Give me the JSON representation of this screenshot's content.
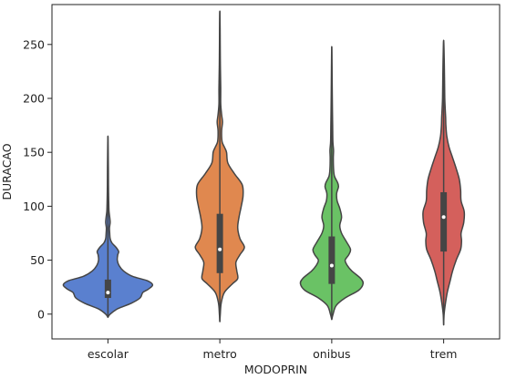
{
  "chart_data": {
    "type": "violin",
    "xlabel": "MODOPRIN",
    "ylabel": "DURACAO",
    "ylim": [
      -23,
      287
    ],
    "yticks": [
      0,
      50,
      100,
      150,
      200,
      250
    ],
    "grid": false,
    "categories": [
      "escolar",
      "metro",
      "onibus",
      "trem"
    ],
    "series": [
      {
        "category": "escolar",
        "color": "#5a80cf",
        "summary": {
          "min": -3,
          "q1": 15,
          "median": 20,
          "q3": 32,
          "max": 165
        },
        "density": [
          [
            -3,
            0.0
          ],
          [
            0,
            0.05
          ],
          [
            5,
            0.22
          ],
          [
            10,
            0.52
          ],
          [
            15,
            0.72
          ],
          [
            20,
            0.78
          ],
          [
            23,
            0.9
          ],
          [
            27,
            1.0
          ],
          [
            31,
            0.88
          ],
          [
            35,
            0.55
          ],
          [
            40,
            0.35
          ],
          [
            45,
            0.25
          ],
          [
            50,
            0.21
          ],
          [
            55,
            0.22
          ],
          [
            58,
            0.24
          ],
          [
            62,
            0.18
          ],
          [
            66,
            0.09
          ],
          [
            70,
            0.05
          ],
          [
            75,
            0.04
          ],
          [
            80,
            0.035
          ],
          [
            85,
            0.05
          ],
          [
            90,
            0.04
          ],
          [
            95,
            0.025
          ],
          [
            100,
            0.02
          ],
          [
            110,
            0.015
          ],
          [
            120,
            0.012
          ],
          [
            135,
            0.01
          ],
          [
            150,
            0.006
          ],
          [
            165,
            0.0
          ]
        ]
      },
      {
        "category": "metro",
        "color": "#e0884f",
        "summary": {
          "min": -7,
          "q1": 38,
          "median": 60,
          "q3": 93,
          "max": 281
        },
        "density": [
          [
            -7,
            0.0
          ],
          [
            0,
            0.01
          ],
          [
            10,
            0.03
          ],
          [
            20,
            0.1
          ],
          [
            28,
            0.28
          ],
          [
            33,
            0.4
          ],
          [
            40,
            0.38
          ],
          [
            48,
            0.36
          ],
          [
            55,
            0.45
          ],
          [
            62,
            0.55
          ],
          [
            70,
            0.45
          ],
          [
            80,
            0.4
          ],
          [
            90,
            0.43
          ],
          [
            100,
            0.48
          ],
          [
            110,
            0.52
          ],
          [
            120,
            0.5
          ],
          [
            130,
            0.33
          ],
          [
            140,
            0.18
          ],
          [
            150,
            0.15
          ],
          [
            155,
            0.1
          ],
          [
            160,
            0.05
          ],
          [
            170,
            0.04
          ],
          [
            178,
            0.06
          ],
          [
            185,
            0.04
          ],
          [
            195,
            0.02
          ],
          [
            210,
            0.02
          ],
          [
            230,
            0.012
          ],
          [
            250,
            0.008
          ],
          [
            265,
            0.006
          ],
          [
            281,
            0.0
          ]
        ]
      },
      {
        "category": "onibus",
        "color": "#6ac265",
        "summary": {
          "min": -5,
          "q1": 28,
          "median": 45,
          "q3": 72,
          "max": 248
        },
        "density": [
          [
            -5,
            0.0
          ],
          [
            0,
            0.03
          ],
          [
            8,
            0.1
          ],
          [
            15,
            0.3
          ],
          [
            22,
            0.6
          ],
          [
            28,
            0.7
          ],
          [
            33,
            0.65
          ],
          [
            40,
            0.45
          ],
          [
            45,
            0.35
          ],
          [
            50,
            0.3
          ],
          [
            55,
            0.38
          ],
          [
            60,
            0.42
          ],
          [
            67,
            0.33
          ],
          [
            75,
            0.22
          ],
          [
            82,
            0.18
          ],
          [
            90,
            0.22
          ],
          [
            98,
            0.18
          ],
          [
            105,
            0.12
          ],
          [
            112,
            0.11
          ],
          [
            118,
            0.15
          ],
          [
            122,
            0.13
          ],
          [
            128,
            0.06
          ],
          [
            135,
            0.04
          ],
          [
            145,
            0.035
          ],
          [
            152,
            0.04
          ],
          [
            160,
            0.025
          ],
          [
            175,
            0.02
          ],
          [
            190,
            0.015
          ],
          [
            210,
            0.01
          ],
          [
            230,
            0.006
          ],
          [
            248,
            0.0
          ]
        ]
      },
      {
        "category": "trem",
        "color": "#d4605c",
        "summary": {
          "min": -10,
          "q1": 58,
          "median": 90,
          "q3": 113,
          "max": 254
        },
        "density": [
          [
            -10,
            0.0
          ],
          [
            0,
            0.01
          ],
          [
            10,
            0.04
          ],
          [
            20,
            0.08
          ],
          [
            30,
            0.14
          ],
          [
            40,
            0.2
          ],
          [
            50,
            0.28
          ],
          [
            60,
            0.38
          ],
          [
            68,
            0.4
          ],
          [
            75,
            0.39
          ],
          [
            85,
            0.45
          ],
          [
            95,
            0.46
          ],
          [
            105,
            0.39
          ],
          [
            115,
            0.38
          ],
          [
            125,
            0.35
          ],
          [
            135,
            0.28
          ],
          [
            145,
            0.2
          ],
          [
            155,
            0.12
          ],
          [
            165,
            0.07
          ],
          [
            175,
            0.05
          ],
          [
            182,
            0.045
          ],
          [
            190,
            0.035
          ],
          [
            200,
            0.025
          ],
          [
            215,
            0.02
          ],
          [
            230,
            0.015
          ],
          [
            245,
            0.008
          ],
          [
            254,
            0.0
          ]
        ]
      }
    ]
  }
}
